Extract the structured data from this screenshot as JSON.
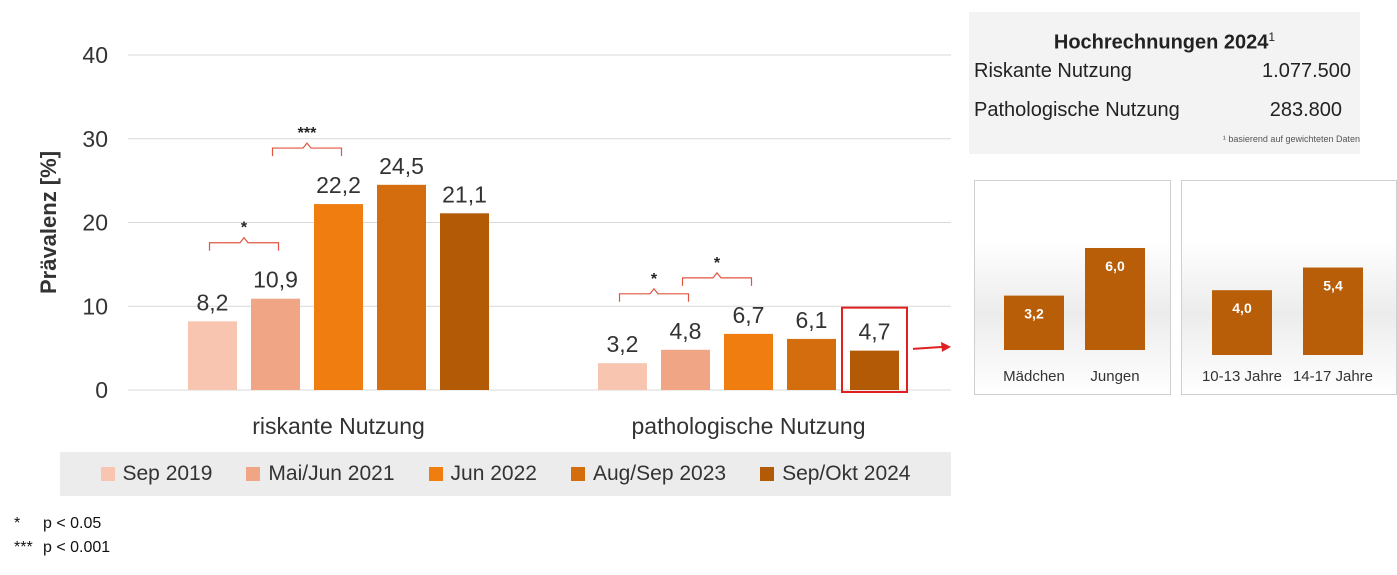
{
  "chart_data": [
    {
      "type": "bar",
      "ylabel": "Prävalenz [%]",
      "ylim": [
        0,
        40
      ],
      "yticks": [
        0,
        10,
        20,
        30,
        40
      ],
      "groups": [
        "riskante Nutzung",
        "pathologische Nutzung"
      ],
      "series": [
        {
          "name": "Sep 2019",
          "values": [
            8.2,
            3.2
          ],
          "labels": [
            "8,2",
            "3,2"
          ],
          "color": "#f7c5b0"
        },
        {
          "name": "Mai/Jun 2021",
          "values": [
            10.9,
            4.8
          ],
          "labels": [
            "10,9",
            "4,8"
          ],
          "color": "#f0a584"
        },
        {
          "name": "Jun 2022",
          "values": [
            22.2,
            6.7
          ],
          "labels": [
            "22,2",
            "6,7"
          ],
          "color": "#ef7d0f"
        },
        {
          "name": "Aug/Sep 2023",
          "values": [
            24.5,
            6.1
          ],
          "labels": [
            "24,5",
            "6,1"
          ],
          "color": "#d46d0e"
        },
        {
          "name": "Sep/Okt 2024",
          "values": [
            21.1,
            4.7
          ],
          "labels": [
            "21,1",
            "4,7"
          ],
          "color": "#b35a07"
        }
      ],
      "significance": [
        {
          "group": 0,
          "from": "Sep 2019",
          "to": "Mai/Jun 2021",
          "mark": "*"
        },
        {
          "group": 0,
          "from": "Mai/Jun 2021",
          "to": "Jun 2022",
          "mark": "***"
        },
        {
          "group": 1,
          "from": "Sep 2019",
          "to": "Mai/Jun 2021",
          "mark": "*"
        },
        {
          "group": 1,
          "from": "Mai/Jun 2021",
          "to": "Jun 2022",
          "mark": "*"
        }
      ],
      "highlight": {
        "group": 1,
        "series": "Sep/Okt 2024",
        "color": "#e02020"
      },
      "grid": true,
      "legend_position": "bottom"
    },
    {
      "type": "bar",
      "categories": [
        "Mädchen",
        "Jungen"
      ],
      "values": [
        3.2,
        6.0
      ],
      "labels": [
        "3,2",
        "6,0"
      ],
      "color": "#b85e08"
    },
    {
      "type": "bar",
      "categories": [
        "10-13 Jahre",
        "14-17 Jahre"
      ],
      "values": [
        4.0,
        5.4
      ],
      "labels": [
        "4,0",
        "5,4"
      ],
      "color": "#b85e08"
    }
  ],
  "footnotes": [
    {
      "symbol": "*",
      "text": "p < 0.05"
    },
    {
      "symbol": "***",
      "text": "p < 0.001"
    }
  ],
  "projection": {
    "title": "Hochrechnungen 2024",
    "title_sup": "1",
    "rows": [
      {
        "label": "Riskante Nutzung",
        "value": "1.077.500"
      },
      {
        "label": "Pathologische Nutzung",
        "value": "283.800"
      }
    ],
    "note": "¹ basierend auf gewichteten Daten"
  }
}
